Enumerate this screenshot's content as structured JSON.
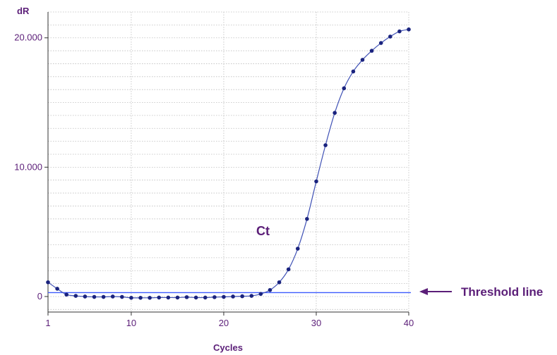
{
  "chart_data": {
    "type": "line",
    "ylabel": "dR",
    "xlabel": "Cycles",
    "xlim": [
      1,
      40
    ],
    "ylim": [
      -1200,
      22000
    ],
    "x_ticks": [
      1,
      10,
      20,
      30,
      40
    ],
    "x_tick_labels": [
      "1",
      "10",
      "20",
      "30",
      "40"
    ],
    "y_ticks": [
      0,
      10000,
      20000
    ],
    "y_tick_labels": [
      "0",
      "10.000",
      "20.000"
    ],
    "grid": true,
    "threshold": 300,
    "series": [
      {
        "color": "#1a237e",
        "x": [
          1,
          2,
          3,
          4,
          5,
          6,
          7,
          8,
          9,
          10,
          11,
          12,
          13,
          14,
          15,
          16,
          17,
          18,
          19,
          20,
          21,
          22,
          23,
          24,
          25,
          26,
          27,
          28,
          29,
          30,
          31,
          32,
          33,
          34,
          35,
          36,
          37,
          38,
          39,
          40
        ],
        "y": [
          1100,
          600,
          150,
          50,
          0,
          -30,
          -30,
          0,
          -30,
          -100,
          -100,
          -100,
          -80,
          -80,
          -80,
          -50,
          -80,
          -80,
          -50,
          -30,
          0,
          20,
          50,
          200,
          500,
          1100,
          2100,
          3700,
          6000,
          8900,
          11700,
          14200,
          16100,
          17400,
          18300,
          19000,
          19600,
          20100,
          20500,
          20650
        ]
      }
    ],
    "annotations": {
      "ct_label": "Ct",
      "threshold_label": "Threshold line"
    },
    "colors": {
      "curve": "#3f51b5",
      "points": "#1a237e",
      "threshold": "#3d5afe",
      "text": "#5b1e78",
      "grid": "#bdbdbd"
    }
  }
}
